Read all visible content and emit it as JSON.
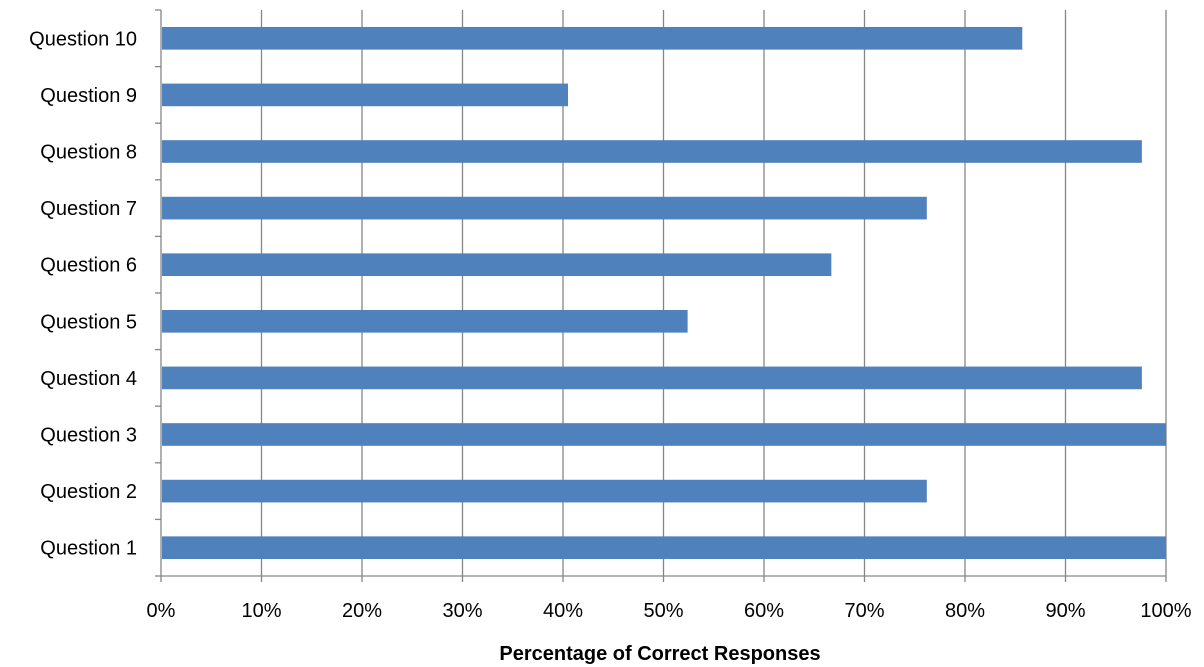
{
  "chart_data": {
    "type": "bar",
    "orientation": "horizontal",
    "categories": [
      "Question 1",
      "Question 2",
      "Question 3",
      "Question 4",
      "Question 5",
      "Question 6",
      "Question 7",
      "Question 8",
      "Question 9",
      "Question 10"
    ],
    "values": [
      100,
      76.2,
      100,
      97.6,
      52.4,
      66.7,
      76.2,
      97.6,
      40.5,
      85.7
    ],
    "xlabel": "Percentage of Correct Responses",
    "ylabel": "",
    "xlim": [
      0,
      100
    ],
    "xticks": [
      "0%",
      "10%",
      "20%",
      "30%",
      "40%",
      "50%",
      "60%",
      "70%",
      "80%",
      "90%",
      "100%"
    ],
    "grid": true,
    "legend": "none",
    "colors": {
      "bar": "#4F81BD",
      "grid": "#868686",
      "axis": "#868686"
    }
  }
}
